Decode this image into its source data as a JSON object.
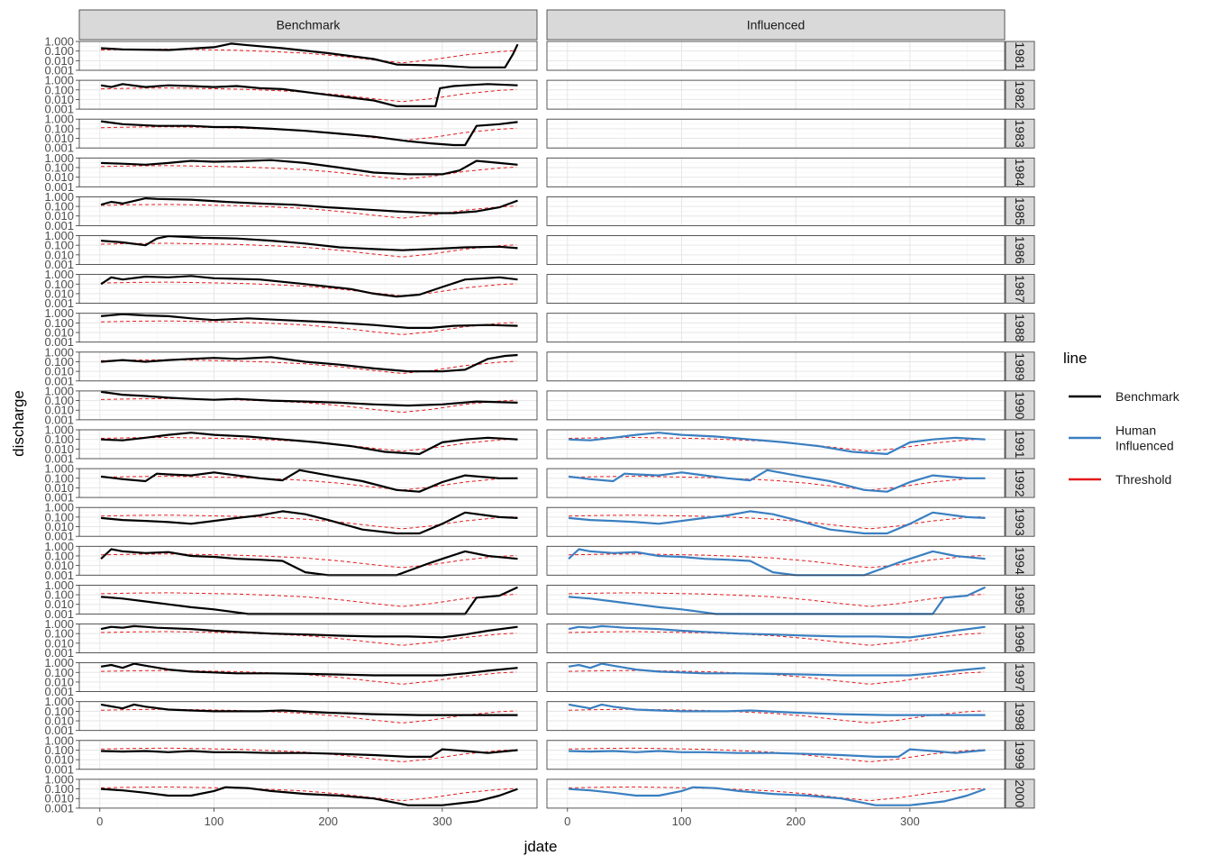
{
  "chart_data": {
    "type": "line",
    "facet_columns": [
      "Benchmark",
      "Influenced"
    ],
    "facet_rows": [
      "1981",
      "1982",
      "1983",
      "1984",
      "1985",
      "1986",
      "1987",
      "1988",
      "1989",
      "1990",
      "1991",
      "1992",
      "1993",
      "1994",
      "1995",
      "1996",
      "1997",
      "1998",
      "1999",
      "2000"
    ],
    "xlabel": "jdate",
    "ylabel": "discharge",
    "x_ticks": [
      0,
      100,
      200,
      300
    ],
    "xlim": [
      -18,
      383
    ],
    "y_scale": "log10",
    "y_ticks": [
      0.001,
      0.01,
      0.1,
      1
    ],
    "y_tick_labels": [
      "0.001",
      "0.010",
      "0.100",
      "1.000"
    ],
    "ylim": [
      0.001,
      1
    ],
    "grid": true,
    "influenced_start_year": "1991",
    "legend": {
      "title": "line",
      "position": "right",
      "entries": [
        {
          "label": "Benchmark",
          "color": "#000000",
          "dash": "solid"
        },
        {
          "label": "Human\nInfluenced",
          "color": "#3a7fc1",
          "dash": "solid"
        },
        {
          "label": "Threshold",
          "color": "#e41a1c",
          "dash": "dashed"
        }
      ]
    },
    "threshold_profile": {
      "x": [
        1,
        30,
        60,
        90,
        120,
        150,
        180,
        210,
        240,
        265,
        290,
        320,
        350,
        365
      ],
      "y": [
        0.13,
        0.15,
        0.16,
        0.14,
        0.12,
        0.09,
        0.06,
        0.03,
        0.012,
        0.006,
        0.012,
        0.04,
        0.09,
        0.11
      ]
    },
    "series": [
      {
        "year": "1981",
        "x": [
          1,
          20,
          60,
          100,
          115,
          130,
          160,
          200,
          240,
          260,
          300,
          325,
          355,
          362,
          366
        ],
        "y": [
          0.2,
          0.15,
          0.13,
          0.25,
          0.6,
          0.4,
          0.2,
          0.06,
          0.015,
          0.004,
          0.003,
          0.002,
          0.002,
          0.05,
          0.5
        ]
      },
      {
        "year": "1982",
        "x": [
          1,
          10,
          20,
          40,
          60,
          80,
          100,
          120,
          140,
          160,
          200,
          240,
          260,
          294,
          298,
          310,
          320,
          340,
          366
        ],
        "y": [
          0.3,
          0.2,
          0.4,
          0.2,
          0.3,
          0.25,
          0.2,
          0.25,
          0.15,
          0.12,
          0.03,
          0.008,
          0.002,
          0.002,
          0.15,
          0.25,
          0.3,
          0.4,
          0.3
        ]
      },
      {
        "year": "1983",
        "x": [
          1,
          20,
          50,
          80,
          100,
          120,
          150,
          180,
          210,
          240,
          270,
          290,
          310,
          320,
          330,
          350,
          366
        ],
        "y": [
          0.6,
          0.3,
          0.2,
          0.2,
          0.15,
          0.15,
          0.1,
          0.06,
          0.03,
          0.015,
          0.005,
          0.003,
          0.002,
          0.002,
          0.2,
          0.3,
          0.5
        ]
      },
      {
        "year": "1984",
        "x": [
          1,
          20,
          40,
          60,
          80,
          100,
          120,
          150,
          180,
          210,
          240,
          270,
          300,
          315,
          330,
          350,
          366
        ],
        "y": [
          0.3,
          0.25,
          0.2,
          0.3,
          0.5,
          0.4,
          0.45,
          0.6,
          0.3,
          0.1,
          0.03,
          0.02,
          0.02,
          0.05,
          0.5,
          0.3,
          0.2
        ]
      },
      {
        "year": "1985",
        "x": [
          1,
          10,
          20,
          40,
          50,
          80,
          110,
          140,
          170,
          200,
          230,
          260,
          290,
          310,
          330,
          350,
          366
        ],
        "y": [
          0.15,
          0.3,
          0.2,
          0.7,
          0.6,
          0.5,
          0.3,
          0.2,
          0.15,
          0.08,
          0.05,
          0.03,
          0.02,
          0.02,
          0.03,
          0.08,
          0.4
        ]
      },
      {
        "year": "1986",
        "x": [
          1,
          20,
          40,
          50,
          60,
          90,
          120,
          150,
          180,
          210,
          240,
          265,
          290,
          320,
          350,
          366
        ],
        "y": [
          0.3,
          0.2,
          0.1,
          0.5,
          0.9,
          0.6,
          0.5,
          0.3,
          0.15,
          0.06,
          0.04,
          0.03,
          0.04,
          0.06,
          0.07,
          0.05
        ]
      },
      {
        "year": "1987",
        "x": [
          1,
          10,
          20,
          40,
          60,
          80,
          100,
          140,
          180,
          220,
          240,
          260,
          280,
          300,
          320,
          350,
          366
        ],
        "y": [
          0.1,
          0.5,
          0.3,
          0.6,
          0.5,
          0.7,
          0.4,
          0.3,
          0.1,
          0.03,
          0.01,
          0.005,
          0.008,
          0.05,
          0.3,
          0.5,
          0.3
        ]
      },
      {
        "year": "1988",
        "x": [
          1,
          20,
          40,
          60,
          80,
          100,
          130,
          160,
          200,
          240,
          270,
          290,
          310,
          340,
          366
        ],
        "y": [
          0.5,
          0.8,
          0.6,
          0.5,
          0.3,
          0.2,
          0.3,
          0.2,
          0.12,
          0.06,
          0.03,
          0.03,
          0.05,
          0.06,
          0.05
        ]
      },
      {
        "year": "1989",
        "x": [
          1,
          20,
          40,
          60,
          80,
          100,
          120,
          150,
          180,
          210,
          240,
          270,
          300,
          320,
          340,
          355,
          366
        ],
        "y": [
          0.1,
          0.15,
          0.1,
          0.15,
          0.2,
          0.25,
          0.2,
          0.3,
          0.1,
          0.05,
          0.02,
          0.01,
          0.01,
          0.015,
          0.2,
          0.4,
          0.5
        ]
      },
      {
        "year": "1990",
        "x": [
          1,
          20,
          40,
          60,
          80,
          100,
          120,
          150,
          180,
          210,
          240,
          270,
          300,
          330,
          366
        ],
        "y": [
          0.8,
          0.4,
          0.3,
          0.2,
          0.15,
          0.12,
          0.15,
          0.1,
          0.08,
          0.06,
          0.04,
          0.03,
          0.04,
          0.08,
          0.06
        ]
      },
      {
        "year": "1991",
        "x": [
          1,
          20,
          40,
          60,
          80,
          100,
          130,
          160,
          190,
          220,
          250,
          280,
          300,
          320,
          340,
          366
        ],
        "y": [
          0.1,
          0.08,
          0.15,
          0.3,
          0.5,
          0.3,
          0.2,
          0.1,
          0.05,
          0.02,
          0.005,
          0.003,
          0.05,
          0.1,
          0.15,
          0.1
        ]
      },
      {
        "year": "1992",
        "x": [
          1,
          20,
          40,
          50,
          60,
          80,
          100,
          120,
          140,
          160,
          175,
          200,
          230,
          260,
          280,
          300,
          320,
          350,
          366
        ],
        "y": [
          0.15,
          0.08,
          0.05,
          0.3,
          0.25,
          0.2,
          0.4,
          0.2,
          0.1,
          0.06,
          0.7,
          0.2,
          0.05,
          0.006,
          0.004,
          0.04,
          0.2,
          0.1,
          0.1
        ]
      },
      {
        "year": "1993",
        "x": [
          1,
          20,
          40,
          60,
          80,
          100,
          120,
          140,
          160,
          180,
          200,
          230,
          260,
          280,
          300,
          320,
          350,
          366
        ],
        "y": [
          0.08,
          0.05,
          0.04,
          0.03,
          0.02,
          0.04,
          0.08,
          0.15,
          0.4,
          0.2,
          0.05,
          0.005,
          0.002,
          0.002,
          0.02,
          0.3,
          0.1,
          0.08
        ]
      },
      {
        "year": "1994",
        "x": [
          1,
          10,
          20,
          40,
          60,
          80,
          100,
          120,
          140,
          160,
          180,
          200,
          230,
          260,
          290,
          300,
          320,
          340,
          366
        ],
        "y": [
          0.05,
          0.5,
          0.3,
          0.2,
          0.25,
          0.1,
          0.08,
          0.05,
          0.04,
          0.03,
          0.002,
          0.001,
          0.001,
          0.001,
          0.02,
          0.05,
          0.3,
          0.1,
          0.05
        ]
      },
      {
        "year": "1995",
        "x": [
          1,
          20,
          40,
          60,
          80,
          100,
          130,
          160,
          200,
          240,
          280,
          300,
          320,
          330,
          350,
          366
        ],
        "y": [
          0.06,
          0.04,
          0.02,
          0.01,
          0.005,
          0.003,
          0.001,
          0.001,
          0.001,
          0.001,
          0.001,
          0.001,
          0.001,
          0.05,
          0.08,
          0.6
        ]
      },
      {
        "year": "1996",
        "x": [
          1,
          10,
          20,
          30,
          40,
          50,
          80,
          100,
          120,
          150,
          180,
          210,
          240,
          270,
          300,
          320,
          340,
          366
        ],
        "y": [
          0.3,
          0.5,
          0.4,
          0.6,
          0.5,
          0.4,
          0.3,
          0.2,
          0.15,
          0.1,
          0.08,
          0.06,
          0.05,
          0.05,
          0.04,
          0.08,
          0.2,
          0.5
        ]
      },
      {
        "year": "1997",
        "x": [
          1,
          10,
          20,
          30,
          40,
          60,
          80,
          100,
          120,
          150,
          180,
          210,
          240,
          270,
          300,
          320,
          340,
          366
        ],
        "y": [
          0.4,
          0.6,
          0.3,
          0.8,
          0.5,
          0.2,
          0.12,
          0.1,
          0.08,
          0.08,
          0.07,
          0.06,
          0.05,
          0.05,
          0.05,
          0.08,
          0.15,
          0.3
        ]
      },
      {
        "year": "1998",
        "x": [
          1,
          20,
          30,
          40,
          60,
          80,
          100,
          140,
          160,
          200,
          240,
          280,
          320,
          366
        ],
        "y": [
          0.5,
          0.2,
          0.5,
          0.3,
          0.15,
          0.12,
          0.1,
          0.1,
          0.12,
          0.07,
          0.05,
          0.04,
          0.04,
          0.04
        ]
      },
      {
        "year": "1999",
        "x": [
          1,
          20,
          40,
          60,
          80,
          100,
          120,
          150,
          180,
          210,
          240,
          270,
          290,
          300,
          320,
          340,
          366
        ],
        "y": [
          0.08,
          0.07,
          0.08,
          0.06,
          0.08,
          0.06,
          0.06,
          0.05,
          0.05,
          0.04,
          0.03,
          0.02,
          0.02,
          0.12,
          0.08,
          0.05,
          0.1
        ]
      },
      {
        "year": "2000",
        "x": [
          1,
          20,
          40,
          60,
          80,
          100,
          110,
          130,
          150,
          180,
          210,
          240,
          270,
          300,
          330,
          350,
          366
        ],
        "y": [
          0.1,
          0.07,
          0.04,
          0.02,
          0.02,
          0.06,
          0.15,
          0.12,
          0.06,
          0.03,
          0.02,
          0.01,
          0.002,
          0.002,
          0.005,
          0.02,
          0.1
        ]
      }
    ]
  }
}
